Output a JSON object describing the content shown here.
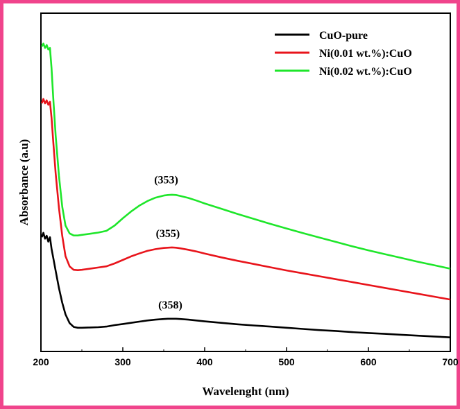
{
  "colors": {
    "frame": "#f0448c",
    "axis": "#000000"
  },
  "chart_data": {
    "type": "line",
    "title": "",
    "xlabel": "Wavelenght (nm)",
    "ylabel": "Absorbance (a.u)",
    "xlim": [
      200,
      700
    ],
    "ylim": [
      0,
      100
    ],
    "y_tick_labels": false,
    "grid": false,
    "legend_position": "top-right",
    "x_ticks": [
      200,
      300,
      400,
      500,
      600,
      700
    ],
    "series": [
      {
        "name": "CuO-pure",
        "color": "#000000",
        "x": [
          201,
          203,
          205,
          207,
          209,
          211,
          213,
          215,
          218,
          222,
          226,
          230,
          235,
          240,
          245,
          250,
          260,
          270,
          280,
          290,
          300,
          310,
          320,
          330,
          340,
          350,
          355,
          360,
          365,
          370,
          380,
          390,
          400,
          420,
          440,
          460,
          480,
          500,
          520,
          540,
          560,
          580,
          600,
          620,
          640,
          660,
          680,
          700
        ],
        "y": [
          34.0,
          35.5,
          33.5,
          34.5,
          32.5,
          34.0,
          30.0,
          27.0,
          22.5,
          16.5,
          11.5,
          7.5,
          4.5,
          3.2,
          2.9,
          2.9,
          3.0,
          3.1,
          3.3,
          3.8,
          4.2,
          4.6,
          5.0,
          5.4,
          5.7,
          5.9,
          6.0,
          6.0,
          6.0,
          5.9,
          5.7,
          5.4,
          5.1,
          4.6,
          4.1,
          3.7,
          3.3,
          2.9,
          2.5,
          2.1,
          1.8,
          1.4,
          1.1,
          0.8,
          0.5,
          0.2,
          -0.1,
          -0.4
        ]
      },
      {
        "name": "Ni(0.01 wt.%):CuO",
        "color": "#e8141b",
        "x": [
          201,
          203,
          205,
          207,
          209,
          211,
          213,
          215,
          218,
          222,
          226,
          230,
          235,
          240,
          245,
          250,
          260,
          270,
          280,
          290,
          300,
          310,
          320,
          330,
          340,
          350,
          355,
          360,
          365,
          370,
          380,
          390,
          400,
          420,
          440,
          460,
          480,
          500,
          520,
          540,
          560,
          580,
          600,
          620,
          640,
          660,
          680,
          700
        ],
        "y": [
          80.0,
          81.5,
          80.0,
          81.0,
          79.5,
          80.5,
          75.0,
          67.0,
          56.0,
          44.0,
          34.5,
          27.5,
          24.0,
          22.8,
          22.7,
          22.8,
          23.2,
          23.6,
          24.0,
          25.0,
          26.2,
          27.4,
          28.4,
          29.3,
          29.9,
          30.3,
          30.4,
          30.5,
          30.4,
          30.2,
          29.7,
          29.1,
          28.4,
          27.1,
          25.9,
          24.8,
          23.7,
          22.6,
          21.6,
          20.6,
          19.6,
          18.6,
          17.6,
          16.6,
          15.6,
          14.6,
          13.6,
          12.6
        ]
      },
      {
        "name": "Ni(0.02 wt.%):CuO",
        "color": "#1ee62a",
        "x": [
          201,
          203,
          205,
          207,
          209,
          211,
          213,
          215,
          218,
          222,
          226,
          230,
          235,
          240,
          245,
          250,
          260,
          270,
          280,
          290,
          300,
          310,
          320,
          330,
          340,
          350,
          355,
          360,
          365,
          370,
          380,
          390,
          400,
          420,
          440,
          460,
          480,
          500,
          520,
          540,
          560,
          580,
          600,
          620,
          640,
          660,
          680,
          700
        ],
        "y": [
          99.5,
          100.5,
          99.0,
          100.0,
          98.5,
          99.0,
          92.0,
          82.0,
          69.0,
          55.0,
          44.5,
          38.0,
          35.3,
          34.6,
          34.6,
          34.8,
          35.2,
          35.6,
          36.2,
          38.0,
          40.5,
          42.8,
          44.8,
          46.4,
          47.6,
          48.3,
          48.5,
          48.6,
          48.5,
          48.2,
          47.5,
          46.6,
          45.6,
          43.8,
          42.0,
          40.3,
          38.6,
          37.0,
          35.4,
          33.9,
          32.4,
          30.9,
          29.5,
          28.2,
          26.9,
          25.6,
          24.4,
          23.2
        ]
      }
    ],
    "annotations": [
      {
        "text": "(353)",
        "x": 353,
        "y": 52.5
      },
      {
        "text": "(355)",
        "x": 355,
        "y": 34.0
      },
      {
        "text": "(358)",
        "x": 358,
        "y": 9.5
      }
    ]
  }
}
